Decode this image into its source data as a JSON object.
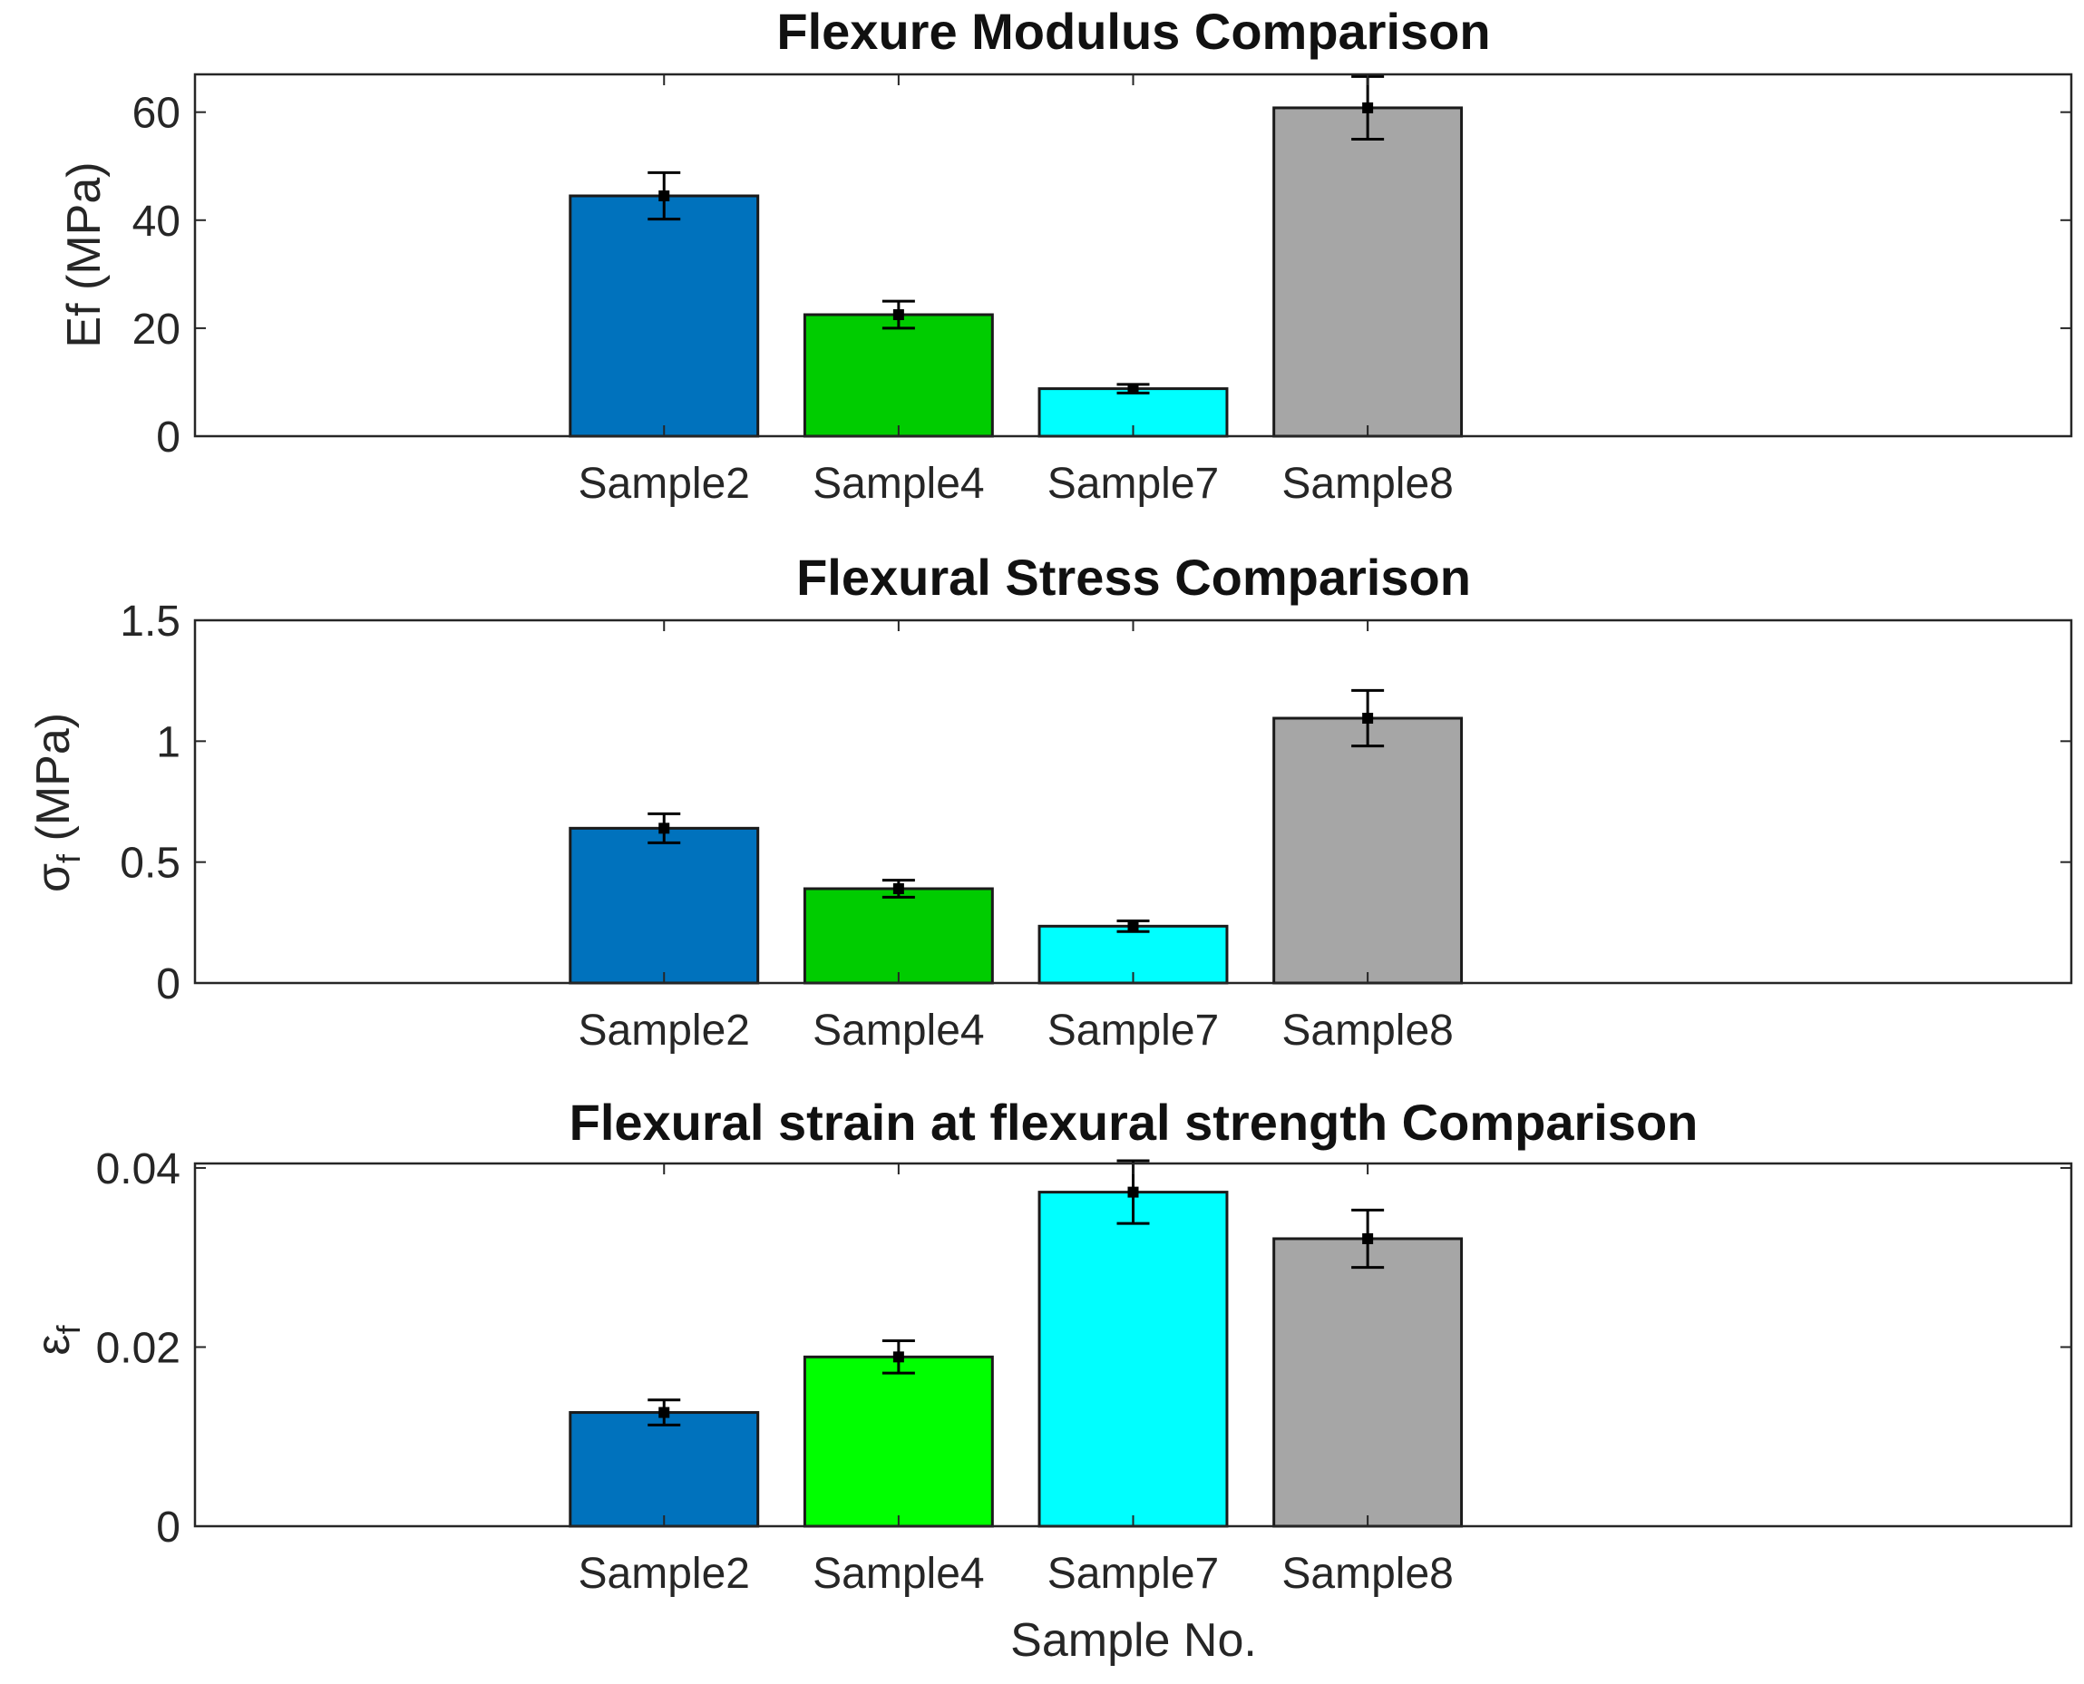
{
  "chart_data": [
    {
      "type": "bar",
      "title": "Flexure Modulus Comparison",
      "xlabel": "",
      "ylabel": "Ef (MPa)",
      "ylabel_main": "Ef (MPa)",
      "ylabel_sub": "",
      "ylabel_rest": "",
      "categories": [
        "Sample2",
        "Sample4",
        "Sample7",
        "Sample8"
      ],
      "values": [
        44.5,
        22.5,
        8.8,
        60.8
      ],
      "errors": [
        4.3,
        2.5,
        0.8,
        5.8
      ],
      "colors": [
        "#0072BD",
        "#00CC00",
        "#00FFFF",
        "#A6A6A6"
      ],
      "ylim": [
        0,
        67
      ],
      "yticks": [
        0,
        20,
        40,
        60
      ],
      "ytick_labels": [
        "0",
        "20",
        "40",
        "60"
      ],
      "grid": false
    },
    {
      "type": "bar",
      "title": "Flexural Stress Comparison",
      "xlabel": "",
      "ylabel": "σf (MPa)",
      "ylabel_main": "σ",
      "ylabel_sub": "f",
      "ylabel_rest": " (MPa)",
      "categories": [
        "Sample2",
        "Sample4",
        "Sample7",
        "Sample8"
      ],
      "values": [
        0.64,
        0.39,
        0.235,
        1.095
      ],
      "errors": [
        0.06,
        0.035,
        0.022,
        0.115
      ],
      "colors": [
        "#0072BD",
        "#00CC00",
        "#00FFFF",
        "#A6A6A6"
      ],
      "ylim": [
        0,
        1.5
      ],
      "yticks": [
        0,
        0.5,
        1,
        1.5
      ],
      "ytick_labels": [
        "0",
        "0.5",
        "1",
        "1.5"
      ],
      "grid": false
    },
    {
      "type": "bar",
      "title": "Flexural strain at flexural strength Comparison",
      "xlabel": "Sample No.",
      "ylabel": "εf",
      "ylabel_main": "ε",
      "ylabel_sub": "f",
      "ylabel_rest": "",
      "categories": [
        "Sample2",
        "Sample4",
        "Sample7",
        "Sample8"
      ],
      "values": [
        0.0127,
        0.0189,
        0.0373,
        0.0321
      ],
      "errors": [
        0.0014,
        0.0018,
        0.0035,
        0.0032
      ],
      "colors": [
        "#0072BD",
        "#00FF00",
        "#00FFFF",
        "#A6A6A6"
      ],
      "ylim": [
        0,
        0.0405
      ],
      "yticks": [
        0,
        0.02,
        0.04
      ],
      "ytick_labels": [
        "0",
        "0.02",
        "0.04"
      ],
      "grid": false
    }
  ]
}
